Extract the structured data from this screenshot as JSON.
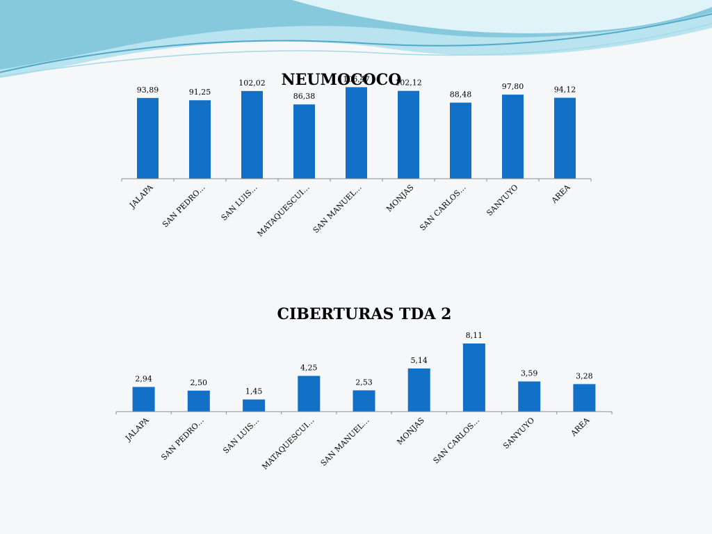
{
  "colors": {
    "bar": "#1270c6",
    "axis": "#8c8c8c",
    "wave_dark": "#7dc3d8",
    "wave_light": "#b9e3ee",
    "background": "#f5f7f8"
  },
  "chart_data": [
    {
      "type": "bar",
      "title": "NEUMOCOCO",
      "categories": [
        "JALAPA",
        "SAN PEDRO…",
        "SAN LUIS…",
        "MATAQUESCUI…",
        "SAN MANUEL…",
        "MONJAS",
        "SAN CARLOS…",
        "SANYUYO",
        "AREA"
      ],
      "values": [
        93.89,
        91.25,
        102.02,
        86.38,
        106.47,
        102.12,
        88.48,
        97.8,
        94.12
      ],
      "value_labels": [
        "93,89",
        "91,25",
        "102,02",
        "86,38",
        "106,47",
        "102,12",
        "88,48",
        "97,80",
        "94,12"
      ],
      "ylim": [
        0,
        110
      ],
      "grid": false,
      "legend": "none"
    },
    {
      "type": "bar",
      "title": "CIBERTURAS TDA 2",
      "categories": [
        "JALAPA",
        "SAN PEDRO…",
        "SAN LUIS…",
        "MATAQUESCUI…",
        "SAN MANUEL…",
        "MONJAS",
        "SAN CARLOS…",
        "SANYUYO",
        "AREA"
      ],
      "values": [
        2.94,
        2.5,
        1.45,
        4.25,
        2.53,
        5.14,
        8.11,
        3.59,
        3.28
      ],
      "value_labels": [
        "2,94",
        "2,50",
        "1,45",
        "4,25",
        "2,53",
        "5,14",
        "8,11",
        "3,59",
        "3,28"
      ],
      "ylim": [
        0,
        8.11
      ],
      "grid": false,
      "legend": "none"
    }
  ]
}
